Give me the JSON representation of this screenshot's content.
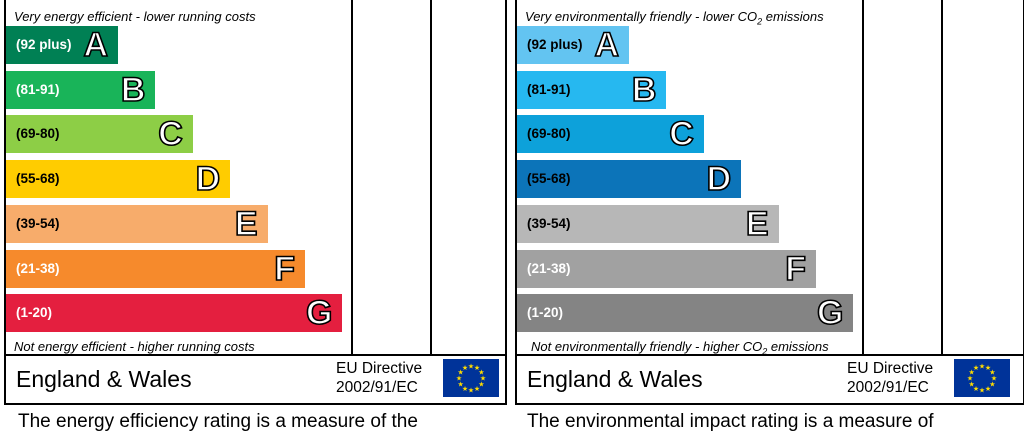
{
  "colors": {
    "energy": [
      "#008054",
      "#19b459",
      "#8dce46",
      "#ffcc00",
      "#f7ac6b",
      "#f68a2c",
      "#e41f3f"
    ],
    "environmental": [
      "#63c4f1",
      "#26b8f0",
      "#0da1da",
      "#0c74b9",
      "#b7b7b7",
      "#a1a1a1",
      "#848484"
    ],
    "flag_blue": "#003399",
    "flag_star": "#ffdd00"
  },
  "chart_data": [
    {
      "type": "bar",
      "categories": [
        "A",
        "B",
        "C",
        "D",
        "E",
        "F",
        "G"
      ],
      "ranges": [
        "(92 plus)",
        "(81-91)",
        "(69-80)",
        "(55-68)",
        "(39-54)",
        "(21-38)",
        "(1-20)"
      ],
      "top_note": "Very energy efficient - lower running costs",
      "bottom_note": "Not energy efficient - higher running costs",
      "range_text_colors": [
        "#ffffff",
        "#ffffff",
        "#000000",
        "#000000",
        "#000000",
        "#ffffff",
        "#ffffff"
      ]
    },
    {
      "type": "bar",
      "categories": [
        "A",
        "B",
        "C",
        "D",
        "E",
        "F",
        "G"
      ],
      "ranges": [
        "(92 plus)",
        "(81-91)",
        "(69-80)",
        "(55-68)",
        "(39-54)",
        "(21-38)",
        "(1-20)"
      ],
      "top_note_pre": "Very environmentally friendly - lower CO",
      "top_note_sub": "2",
      "top_note_post": " emissions",
      "bottom_note_pre": "Not environmentally friendly - higher CO",
      "bottom_note_sub": "2",
      "bottom_note_post": " emissions",
      "range_text_colors": [
        "#000000",
        "#000000",
        "#000000",
        "#000000",
        "#000000",
        "#ffffff",
        "#ffffff"
      ]
    }
  ],
  "footer_panel": {
    "region": "England & Wales",
    "directive_line1": "EU Directive",
    "directive_line2": "2002/91/EC"
  },
  "captions": {
    "left": "The energy efficiency rating is a measure of the",
    "right": "The environmental impact rating is a measure of"
  }
}
